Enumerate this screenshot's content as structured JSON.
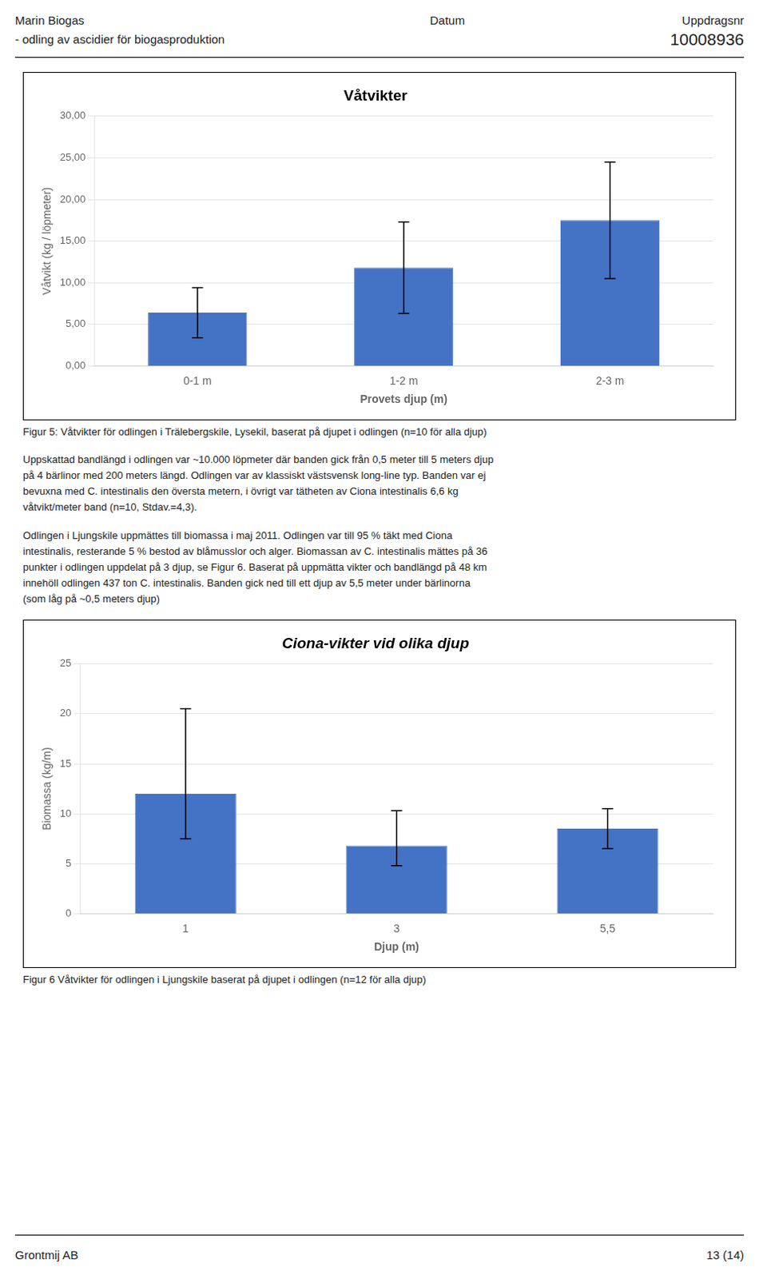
{
  "header": {
    "left": [
      "Marin Biogas",
      "- odling av ascidier för biogasproduktion"
    ],
    "center": "Datum",
    "right": [
      "Uppdragsnr",
      "10008936"
    ]
  },
  "paragraphs": [
    [
      "Uppskattad bandlängd i odlingen var ~10.000 löpmeter där banden gick från 0,5 meter till 5 meters djup",
      "på 4 bärlinor med 200 meters längd. Odlingen var av klassiskt västsvensk long-line typ. Banden var ej",
      "bevuxna med C. intestinalis den översta metern, i övrigt var tätheten av Ciona intestinalis 6,6 kg",
      "våtvikt/meter band (n=10, Stdav.=4,3)."
    ],
    [
      "Odlingen i Ljungskile uppmättes till biomassa i maj 2011. Odlingen var till 95 % täkt med Ciona",
      "intestinalis, resterande 5 % bestod av blåmusslor och alger. Biomassan av C. intestinalis mättes på 36",
      "punkter i odlingen uppdelat på 3 djup, se Figur 6. Baserat på uppmätta vikter och bandlängd på 48 km",
      "innehöll odlingen 437 ton C. intestinalis. Banden gick ned till ett djup av 5,5 meter under bärlinorna",
      "(som låg på ~0,5 meters djup)"
    ]
  ],
  "footer": {
    "left": "Grontmij AB",
    "right": "13 (14)"
  },
  "chart_data": [
    {
      "type": "bar",
      "title": "Våtvikter",
      "xlabel": "Provets djup (m)",
      "ylabel": "Våtvikt (kg / löpmeter)",
      "categories": [
        "0-1 m",
        "1-2 m",
        "2-3 m"
      ],
      "values": [
        6.4,
        11.8,
        17.5
      ],
      "errors": [
        3.0,
        5.5,
        7.0
      ],
      "color": "#4472C4",
      "ylim": [
        0,
        30
      ],
      "yticks": [
        {
          "value": 0,
          "label": "0,00"
        },
        {
          "value": 5,
          "label": "5,00"
        },
        {
          "value": 10,
          "label": "10,00"
        },
        {
          "value": 15,
          "label": "15,00"
        },
        {
          "value": 20,
          "label": "20,00"
        },
        {
          "value": 25,
          "label": "25,00"
        },
        {
          "value": 30,
          "label": "30,00"
        }
      ],
      "grid": true,
      "caption": "Figur 5: Våtvikter för odlingen i Trälebergskile, Lysekil, baserat på djupet i odlingen (n=10 för alla djup)"
    },
    {
      "type": "bar",
      "title": "Ciona-vikter vid olika djup",
      "xlabel": "Djup (m)",
      "ylabel": "Biomassa (kg/m)",
      "categories": [
        "1",
        "3",
        "5,5"
      ],
      "values": [
        12.0,
        6.8,
        8.5
      ],
      "errors_plus": [
        8.5,
        3.5,
        2.0
      ],
      "errors_minus": [
        4.5,
        2.0,
        2.0
      ],
      "color": "#4472C4",
      "ylim": [
        0,
        25
      ],
      "yticks": [
        0,
        5,
        10,
        15,
        20,
        25
      ],
      "grid": true,
      "caption": "Figur 6  Våtvikter för odlingen i Ljungskile baserat på djupet i odlingen (n=12 för alla djup)"
    }
  ]
}
